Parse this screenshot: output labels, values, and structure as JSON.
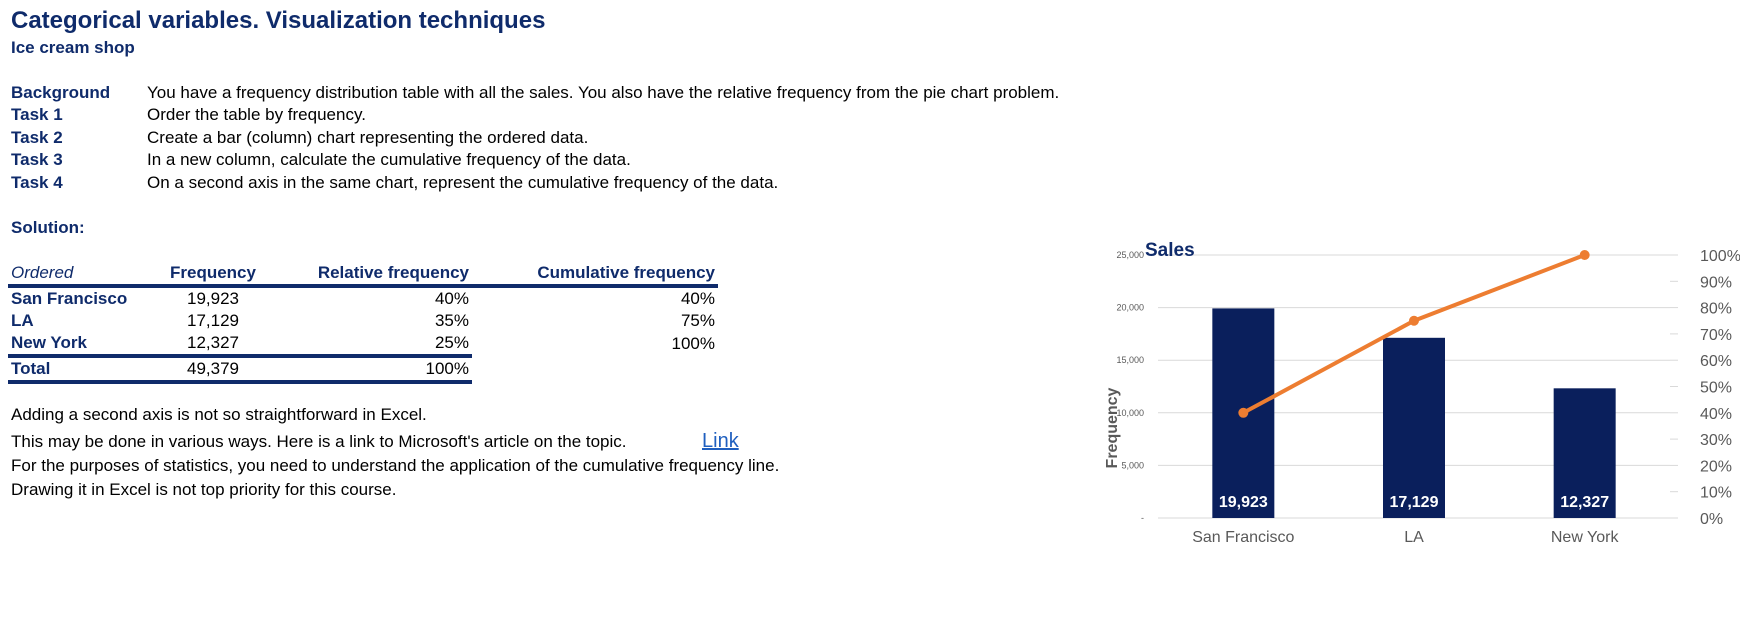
{
  "header": {
    "title": "Categorical variables. Visualization techniques",
    "subtitle": "Ice cream shop"
  },
  "tasks": [
    {
      "label": "Background",
      "text": "You have a frequency distribution table with all the sales. You also have the relative frequency from the pie chart problem."
    },
    {
      "label": "Task 1",
      "text": "Order the table by frequency."
    },
    {
      "label": "Task 2",
      "text": "Create a bar (column) chart representing the ordered data."
    },
    {
      "label": "Task 3",
      "text": "In a new column, calculate the cumulative frequency of the data."
    },
    {
      "label": "Task 4",
      "text": "On a second axis in the same chart, represent the cumulative frequency of the data."
    }
  ],
  "solution_label": "Solution:",
  "table": {
    "headers": [
      "Ordered",
      "Frequency",
      "Relative frequency",
      "Cumulative frequency"
    ],
    "rows": [
      {
        "label": "San Francisco",
        "frequency": "19,923",
        "relative": "40%",
        "cumulative": "40%"
      },
      {
        "label": "LA",
        "frequency": "17,129",
        "relative": "35%",
        "cumulative": "75%"
      },
      {
        "label": "New York",
        "frequency": "12,327",
        "relative": "25%",
        "cumulative": "100%"
      }
    ],
    "total": {
      "label": "Total",
      "frequency": "49,379",
      "relative": "100%"
    }
  },
  "notes": [
    "Adding a second axis is not so straightforward in Excel.",
    "This may be done in various ways. Here is a link to Microsoft's article on the topic.",
    "For the purposes of statistics, you need to understand the application of the cumulative frequency line.",
    "Drawing it in Excel is not top priority for this course."
  ],
  "link_label": "Link",
  "colors": {
    "bar": "#0a1f5c",
    "line": "#ed7d31",
    "title": "#0f2b6b",
    "grid": "#d9d9d9"
  },
  "chart_data": {
    "type": "bar",
    "title": "Sales",
    "ylabel": "Frequency",
    "categories": [
      "San Francisco",
      "LA",
      "New York"
    ],
    "series": [
      {
        "name": "Frequency",
        "type": "bar",
        "axis": "left",
        "values": [
          19923,
          17129,
          12327
        ],
        "labels": [
          "19,923",
          "17,129",
          "12,327"
        ]
      },
      {
        "name": "Cumulative frequency",
        "type": "line",
        "axis": "right",
        "values": [
          0.4,
          0.75,
          1.0
        ]
      }
    ],
    "ylim": [
      0,
      25000
    ],
    "yticks": [
      0,
      5000,
      10000,
      15000,
      20000,
      25000
    ],
    "ytick_labels": [
      "-",
      "5,000",
      "10,000",
      "15,000",
      "20,000",
      "25,000"
    ],
    "y2lim": [
      0,
      1
    ],
    "y2ticks": [
      0,
      0.1,
      0.2,
      0.3,
      0.4,
      0.5,
      0.6,
      0.7,
      0.8,
      0.9,
      1.0
    ],
    "y2tick_labels": [
      "0%",
      "10%",
      "20%",
      "30%",
      "40%",
      "50%",
      "60%",
      "70%",
      "80%",
      "90%",
      "100%"
    ],
    "grid": true,
    "legend": "none"
  }
}
